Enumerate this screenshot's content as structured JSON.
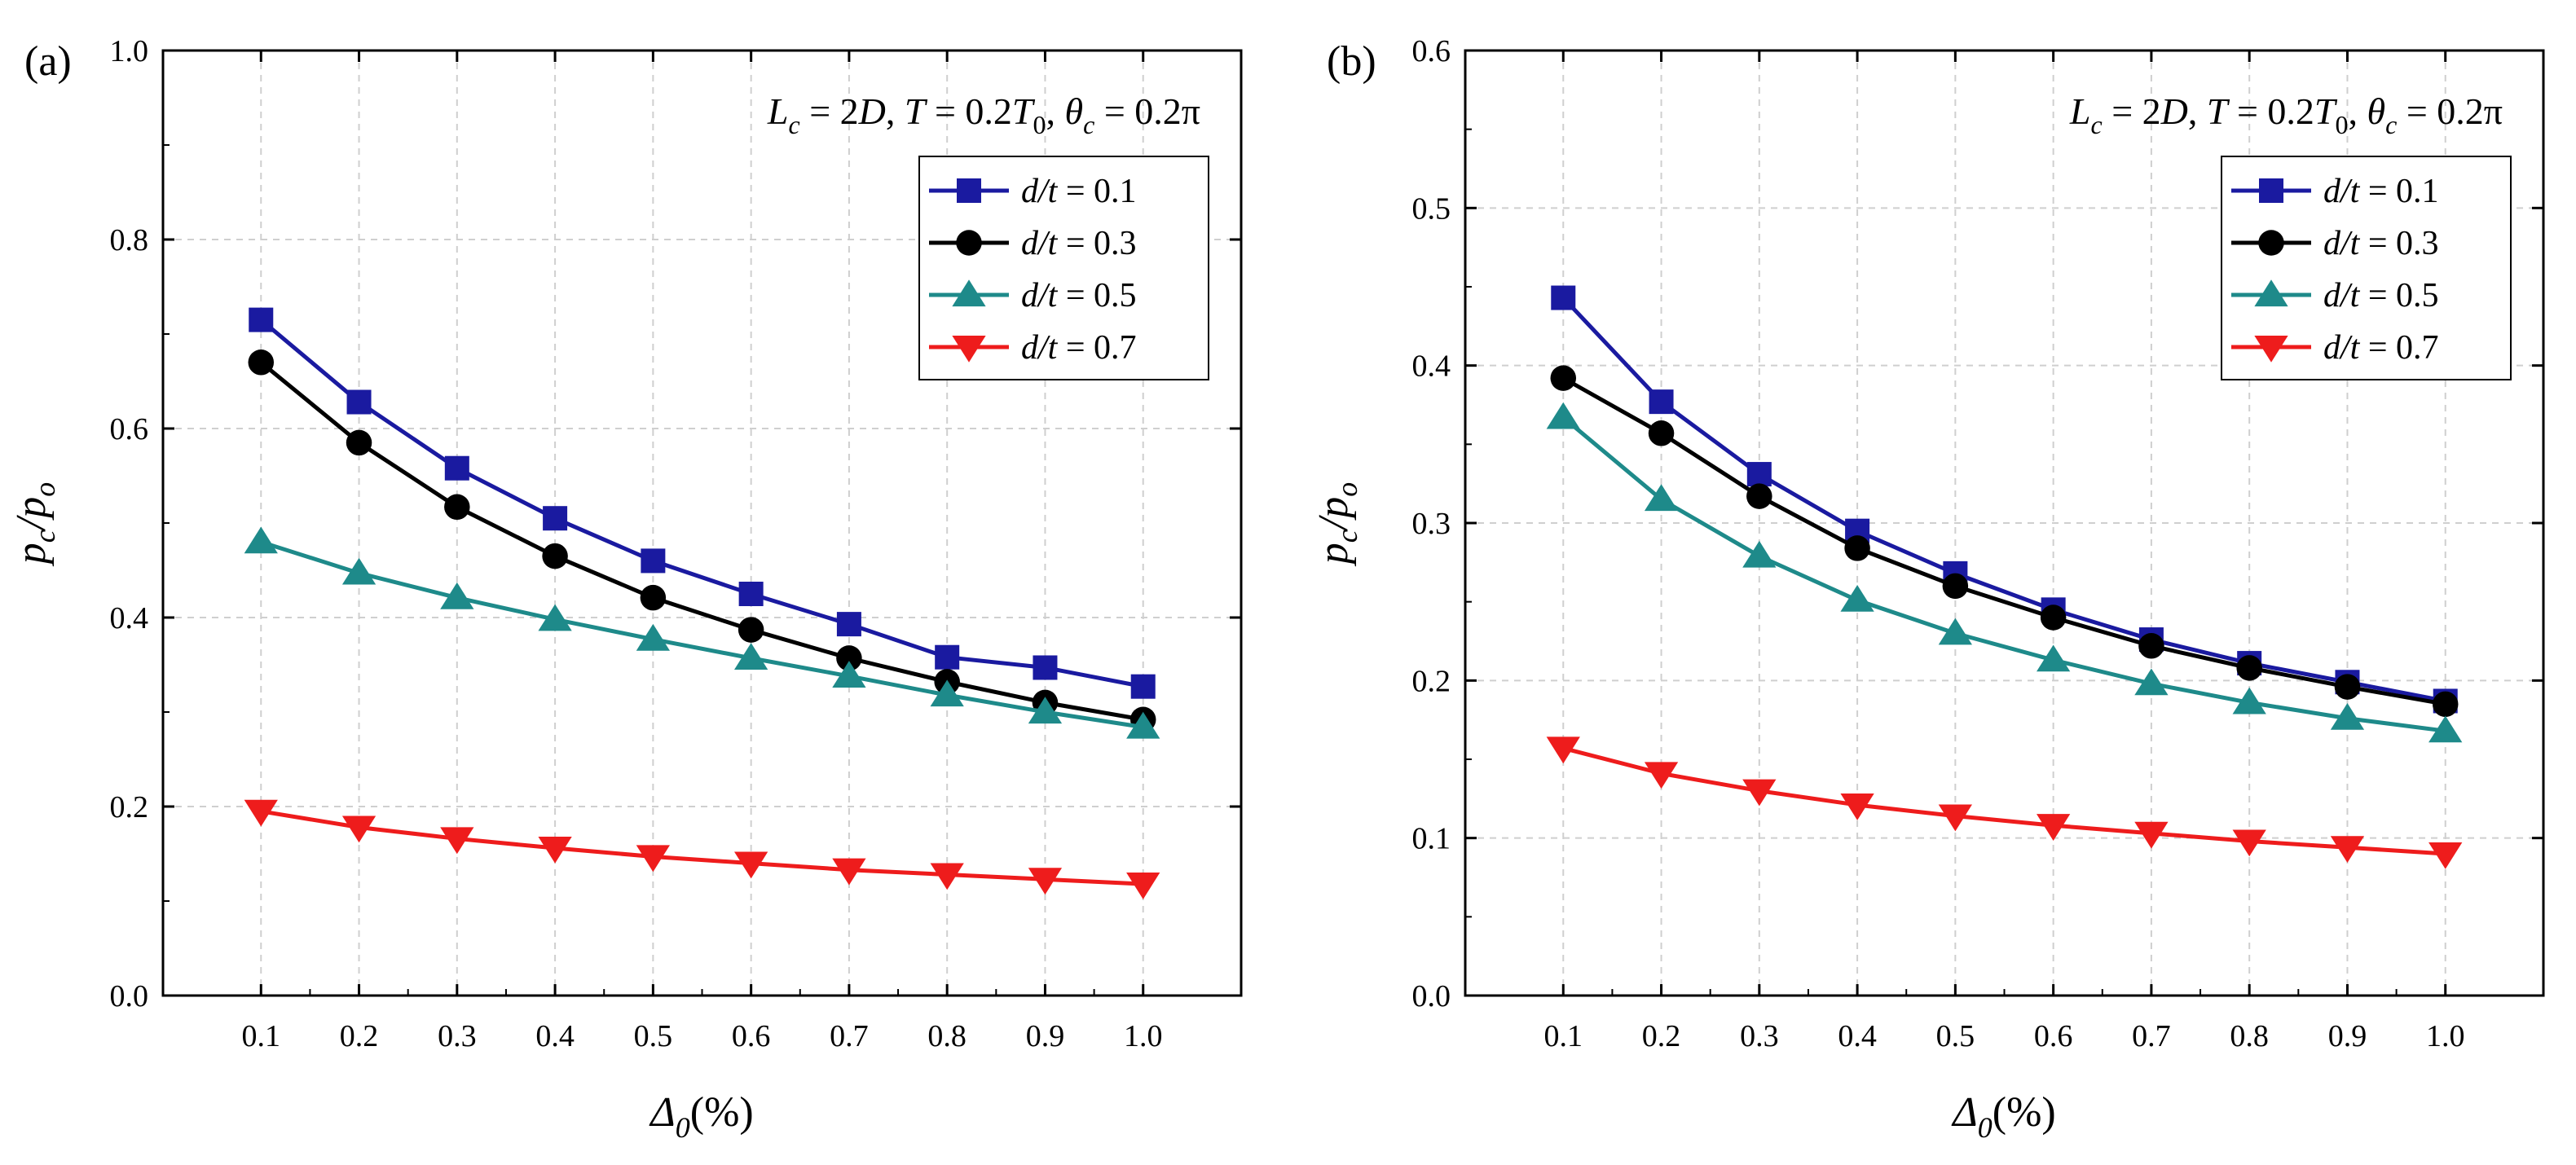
{
  "chart_data": [
    {
      "type": "line",
      "panel_label": "(a)",
      "annotation": {
        "parts": [
          "L",
          "c",
          " = 2",
          "D",
          ", ",
          "T",
          " = 0.2",
          "T",
          "0",
          ", ",
          "θ",
          "c",
          " = 0.2π"
        ]
      },
      "xlabel": {
        "main": "Δ",
        "sub": "0",
        "tail": "(%)"
      },
      "ylabel": {
        "p": "p",
        "c": "c",
        "slash": "/",
        "p2": "p",
        "o": "o"
      },
      "xlim": [
        0.0,
        1.1
      ],
      "ylim": [
        0.0,
        1.0
      ],
      "x_ticks": [
        "0.1",
        "0.2",
        "0.3",
        "0.4",
        "0.5",
        "0.6",
        "0.7",
        "0.8",
        "0.9",
        "1.0"
      ],
      "y_ticks": [
        "0.0",
        "0.2",
        "0.4",
        "0.6",
        "0.8",
        "1.0"
      ],
      "grid": true,
      "legend_position": "top-right",
      "x": [
        0.1,
        0.2,
        0.3,
        0.4,
        0.5,
        0.6,
        0.7,
        0.8,
        0.9,
        1.0
      ],
      "series": [
        {
          "name": "d/t = 0.1",
          "var": "d/t",
          "eq": " = 0.1",
          "color": "#1a1aa0",
          "marker": "square",
          "values": [
            0.715,
            0.628,
            0.558,
            0.505,
            0.46,
            0.425,
            0.393,
            0.358,
            0.347,
            0.327
          ]
        },
        {
          "name": "d/t = 0.3",
          "var": "d/t",
          "eq": " = 0.3",
          "color": "#000000",
          "marker": "circle",
          "values": [
            0.67,
            0.585,
            0.517,
            0.465,
            0.421,
            0.387,
            0.357,
            0.332,
            0.31,
            0.292
          ]
        },
        {
          "name": "d/t = 0.5",
          "var": "d/t",
          "eq": " = 0.5",
          "color": "#1e8a8a",
          "marker": "triangle-up",
          "values": [
            0.48,
            0.447,
            0.421,
            0.398,
            0.377,
            0.357,
            0.338,
            0.318,
            0.3,
            0.284
          ]
        },
        {
          "name": "d/t = 0.7",
          "var": "d/t",
          "eq": " = 0.7",
          "color": "#ee1c1c",
          "marker": "triangle-down",
          "values": [
            0.195,
            0.178,
            0.166,
            0.156,
            0.147,
            0.14,
            0.133,
            0.128,
            0.123,
            0.118
          ]
        }
      ]
    },
    {
      "type": "line",
      "panel_label": "(b)",
      "annotation": {
        "parts": [
          "L",
          "c",
          " = 2",
          "D",
          ", ",
          "T",
          " = 0.2",
          "T",
          "0",
          ", ",
          "θ",
          "c",
          " = 0.2π"
        ]
      },
      "xlabel": {
        "main": "Δ",
        "sub": "0",
        "tail": "(%)"
      },
      "ylabel": {
        "p": "p",
        "c": "c",
        "slash": "/",
        "p2": "p",
        "o": "o"
      },
      "xlim": [
        0.0,
        1.1
      ],
      "ylim": [
        0.0,
        0.6
      ],
      "x_ticks": [
        "0.1",
        "0.2",
        "0.3",
        "0.4",
        "0.5",
        "0.6",
        "0.7",
        "0.8",
        "0.9",
        "1.0"
      ],
      "y_ticks": [
        "0.0",
        "0.1",
        "0.2",
        "0.3",
        "0.4",
        "0.5",
        "0.6"
      ],
      "grid": true,
      "legend_position": "top-right",
      "x": [
        0.1,
        0.2,
        0.3,
        0.4,
        0.5,
        0.6,
        0.7,
        0.8,
        0.9,
        1.0
      ],
      "series": [
        {
          "name": "d/t = 0.1",
          "var": "d/t",
          "eq": " = 0.1",
          "color": "#1a1aa0",
          "marker": "square",
          "values": [
            0.443,
            0.377,
            0.331,
            0.295,
            0.268,
            0.245,
            0.226,
            0.211,
            0.199,
            0.187
          ]
        },
        {
          "name": "d/t = 0.3",
          "var": "d/t",
          "eq": " = 0.3",
          "color": "#000000",
          "marker": "circle",
          "values": [
            0.392,
            0.357,
            0.317,
            0.284,
            0.26,
            0.24,
            0.222,
            0.208,
            0.196,
            0.185
          ]
        },
        {
          "name": "d/t = 0.5",
          "var": "d/t",
          "eq": " = 0.5",
          "color": "#1e8a8a",
          "marker": "triangle-up",
          "values": [
            0.367,
            0.315,
            0.279,
            0.251,
            0.23,
            0.213,
            0.198,
            0.186,
            0.176,
            0.168
          ]
        },
        {
          "name": "d/t = 0.7",
          "var": "d/t",
          "eq": " = 0.7",
          "color": "#ee1c1c",
          "marker": "triangle-down",
          "values": [
            0.157,
            0.141,
            0.13,
            0.121,
            0.114,
            0.108,
            0.103,
            0.098,
            0.094,
            0.09
          ]
        }
      ]
    }
  ]
}
